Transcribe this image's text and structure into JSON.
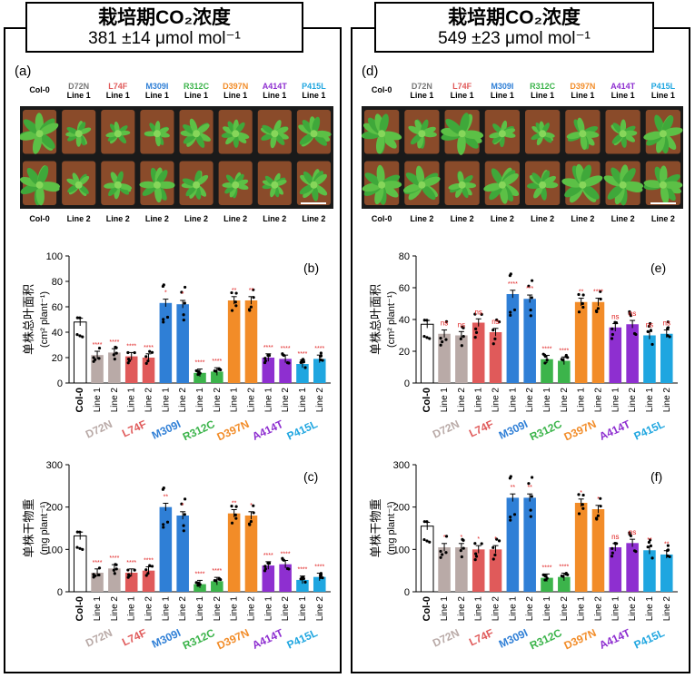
{
  "columns": [
    {
      "title_line1": "栽培期CO₂浓度",
      "title_line2": "381 ±14 μmol mol⁻¹",
      "photo_label": "(a)",
      "leaf_label": "(b)",
      "mass_label": "(c)",
      "leaf_ylim": [
        0,
        100
      ],
      "leaf_ticks": [
        0,
        20,
        40,
        60,
        80,
        100
      ],
      "mass_ylim": [
        0,
        300
      ],
      "mass_ticks": [
        0,
        100,
        200,
        300
      ]
    },
    {
      "title_line1": "栽培期CO₂浓度",
      "title_line2": "549 ±23 μmol mol⁻¹",
      "photo_label": "(d)",
      "leaf_label": "(e)",
      "mass_label": "(f)",
      "leaf_ylim": [
        0,
        80
      ],
      "leaf_ticks": [
        0,
        20,
        40,
        60,
        80
      ],
      "mass_ylim": [
        0,
        300
      ],
      "mass_ticks": [
        0,
        100,
        200,
        300
      ]
    }
  ],
  "photo": {
    "top_labels": [
      {
        "name": "Col-0",
        "line": "",
        "color": "#000000"
      },
      {
        "name": "D72N",
        "line": "Line 1",
        "color": "#777777"
      },
      {
        "name": "L74F",
        "line": "Line 1",
        "color": "#e05a5a"
      },
      {
        "name": "M309I",
        "line": "Line 1",
        "color": "#2f7fd6"
      },
      {
        "name": "R312C",
        "line": "Line 1",
        "color": "#3cb44b"
      },
      {
        "name": "D397N",
        "line": "Line 1",
        "color": "#f28c28"
      },
      {
        "name": "A414T",
        "line": "Line 1",
        "color": "#8e2fd0"
      },
      {
        "name": "P415L",
        "line": "Line 1",
        "color": "#1fa6e0"
      }
    ],
    "bottom_labels": [
      "Col-0",
      "Line 2",
      "Line 2",
      "Line 2",
      "Line 2",
      "Line 2",
      "Line 2",
      "Line 2"
    ]
  },
  "colors": {
    "Col-0": "#ffffff",
    "D72N": "#b9aaa7",
    "L74F": "#e05a5a",
    "M309I": "#2f7fd6",
    "R312C": "#3cb44b",
    "D397N": "#f28c28",
    "A414T": "#8e2fd0",
    "P415L": "#1fa6e0",
    "sig": "#e02020"
  },
  "leaf_ylabel_cn": "单株总叶面积",
  "leaf_ylabel_unit": "(cm² plant⁻¹)",
  "mass_ylabel_cn": "单株干物重",
  "mass_ylabel_unit": "(mg plant⁻¹)",
  "chart_data": [
    {
      "type": "bar",
      "panel": "b",
      "ylim": [
        0,
        100
      ],
      "categories": [
        "Col-0",
        "D72N Line 1",
        "D72N Line 2",
        "L74F Line 1",
        "L74F Line 2",
        "M309I Line 1",
        "M309I Line 2",
        "R312C Line 1",
        "R312C Line 2",
        "D397N Line 1",
        "D397N Line 2",
        "A414T Line 1",
        "A414T Line 2",
        "P415L Line 1",
        "P415L Line 2"
      ],
      "values": [
        48,
        22,
        24,
        21,
        20,
        63,
        62,
        8,
        9,
        65,
        65,
        20,
        19,
        15,
        19
      ],
      "significance": [
        "",
        "****",
        "****",
        "****",
        "****",
        "*",
        "*",
        "****",
        "****",
        "**",
        "**",
        "****",
        "****",
        "****",
        "****"
      ]
    },
    {
      "type": "bar",
      "panel": "c",
      "ylim": [
        0,
        300
      ],
      "categories": [
        "Col-0",
        "D72N Line 1",
        "D72N Line 2",
        "L74F Line 1",
        "L74F Line 2",
        "M309I Line 1",
        "M309I Line 2",
        "R312C Line 1",
        "R312C Line 2",
        "D397N Line 1",
        "D397N Line 2",
        "A414T Line 1",
        "A414T Line 2",
        "P415L Line 1",
        "P415L Line 2"
      ],
      "values": [
        132,
        45,
        55,
        45,
        50,
        200,
        180,
        18,
        25,
        185,
        180,
        62,
        65,
        28,
        35
      ],
      "significance": [
        "",
        "****",
        "****",
        "****",
        "****",
        "**",
        "*",
        "****",
        "****",
        "**",
        "*",
        "****",
        "****",
        "****",
        "****"
      ]
    },
    {
      "type": "bar",
      "panel": "e",
      "ylim": [
        0,
        80
      ],
      "categories": [
        "Col-0",
        "D72N Line 1",
        "D72N Line 2",
        "L74F Line 1",
        "L74F Line 2",
        "M309I Line 1",
        "M309I Line 2",
        "R312C Line 1",
        "R312C Line 2",
        "D397N Line 1",
        "D397N Line 2",
        "A414T Line 1",
        "A414T Line 2",
        "P415L Line 1",
        "P415L Line 2"
      ],
      "values": [
        37,
        31,
        30,
        38,
        32,
        56,
        53,
        15,
        14,
        51,
        51,
        35,
        37,
        30,
        31
      ],
      "significance": [
        "",
        "ns",
        "ns",
        "ns",
        "ns",
        "****",
        "***",
        "****",
        "****",
        "**",
        "****",
        "ns",
        "ns",
        "ns",
        "ns"
      ]
    },
    {
      "type": "bar",
      "panel": "f",
      "ylim": [
        0,
        300
      ],
      "categories": [
        "Col-0",
        "D72N Line 1",
        "D72N Line 2",
        "L74F Line 1",
        "L74F Line 2",
        "M309I Line 1",
        "M309I Line 2",
        "R312C Line 1",
        "R312C Line 2",
        "D397N Line 1",
        "D397N Line 2",
        "A414T Line 1",
        "A414T Line 2",
        "P415L Line 1",
        "P415L Line 2"
      ],
      "values": [
        155,
        105,
        105,
        100,
        100,
        222,
        222,
        33,
        35,
        210,
        195,
        105,
        115,
        98,
        88
      ],
      "significance": [
        "",
        "*",
        "*",
        "*",
        "*",
        "**",
        "**",
        "****",
        "****",
        "*",
        "*",
        "ns",
        "ns",
        "**",
        "**"
      ]
    }
  ],
  "group_labels": [
    {
      "name": "D72N",
      "color": "#b9aaa7"
    },
    {
      "name": "L74F",
      "color": "#e05a5a"
    },
    {
      "name": "M309I",
      "color": "#2f7fd6"
    },
    {
      "name": "R312C",
      "color": "#3cb44b"
    },
    {
      "name": "D397N",
      "color": "#f28c28"
    },
    {
      "name": "A414T",
      "color": "#8e2fd0"
    },
    {
      "name": "P415L",
      "color": "#1fa6e0"
    }
  ],
  "xtick_line1": "Line 1",
  "xtick_line2": "Line 2",
  "xtick_col0": "Col-0"
}
